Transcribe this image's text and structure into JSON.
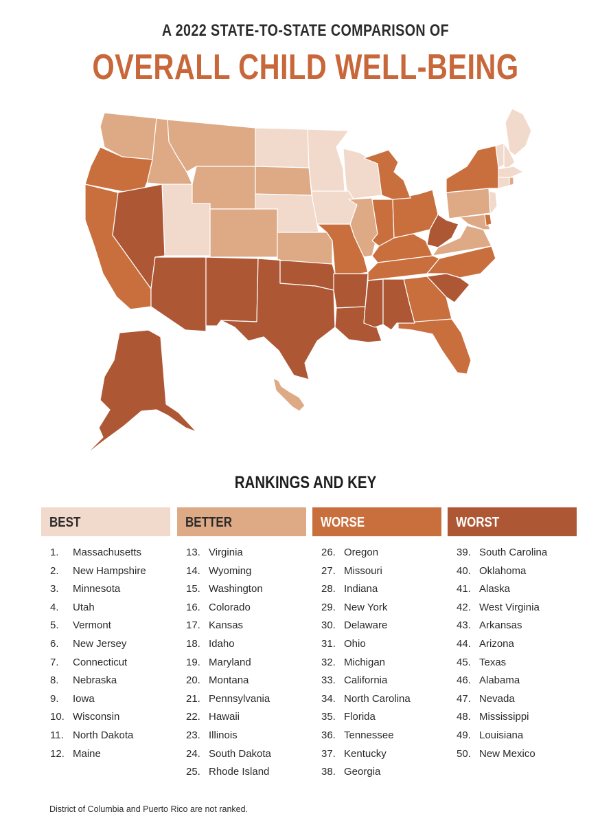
{
  "header": {
    "subtitle": "A 2022 STATE-TO-STATE COMPARISON OF",
    "title": "OVERALL CHILD WELL-BEING",
    "title_color": "#c8683a"
  },
  "key": {
    "heading": "RANKINGS AND KEY",
    "tiers": [
      {
        "label": "BEST",
        "color": "#f1d9cb",
        "text_color": "#2a2a2a"
      },
      {
        "label": "BETTER",
        "color": "#dea985",
        "text_color": "#2a2a2a"
      },
      {
        "label": "WORSE",
        "color": "#c96f3e",
        "text_color": "#ffffff"
      },
      {
        "label": "WORST",
        "color": "#ad5735",
        "text_color": "#ffffff"
      }
    ],
    "columns": [
      [
        {
          "rank": "1.",
          "state": "Massachusetts"
        },
        {
          "rank": "2.",
          "state": "New Hampshire"
        },
        {
          "rank": "3.",
          "state": "Minnesota"
        },
        {
          "rank": "4.",
          "state": "Utah"
        },
        {
          "rank": "5.",
          "state": "Vermont"
        },
        {
          "rank": "6.",
          "state": "New Jersey"
        },
        {
          "rank": "7.",
          "state": "Connecticut"
        },
        {
          "rank": "8.",
          "state": "Nebraska"
        },
        {
          "rank": "9.",
          "state": "Iowa"
        },
        {
          "rank": "10.",
          "state": "Wisconsin"
        },
        {
          "rank": "11.",
          "state": "North Dakota"
        },
        {
          "rank": "12.",
          "state": "Maine"
        }
      ],
      [
        {
          "rank": "13.",
          "state": "Virginia"
        },
        {
          "rank": "14.",
          "state": "Wyoming"
        },
        {
          "rank": "15.",
          "state": "Washington"
        },
        {
          "rank": "16.",
          "state": "Colorado"
        },
        {
          "rank": "17.",
          "state": "Kansas"
        },
        {
          "rank": "18.",
          "state": "Idaho"
        },
        {
          "rank": "19.",
          "state": "Maryland"
        },
        {
          "rank": "20.",
          "state": "Montana"
        },
        {
          "rank": "21.",
          "state": "Pennsylvania"
        },
        {
          "rank": "22.",
          "state": "Hawaii"
        },
        {
          "rank": "23.",
          "state": "Illinois"
        },
        {
          "rank": "24.",
          "state": "South Dakota"
        },
        {
          "rank": "25.",
          "state": "Rhode Island"
        }
      ],
      [
        {
          "rank": "26.",
          "state": "Oregon"
        },
        {
          "rank": "27.",
          "state": "Missouri"
        },
        {
          "rank": "28.",
          "state": "Indiana"
        },
        {
          "rank": "29.",
          "state": "New York"
        },
        {
          "rank": "30.",
          "state": "Delaware"
        },
        {
          "rank": "31.",
          "state": "Ohio"
        },
        {
          "rank": "32.",
          "state": "Michigan"
        },
        {
          "rank": "33.",
          "state": "California"
        },
        {
          "rank": "34.",
          "state": "North Carolina"
        },
        {
          "rank": "35.",
          "state": "Florida"
        },
        {
          "rank": "36.",
          "state": "Tennessee"
        },
        {
          "rank": "37.",
          "state": "Kentucky"
        },
        {
          "rank": "38.",
          "state": "Georgia"
        }
      ],
      [
        {
          "rank": "39.",
          "state": "South Carolina"
        },
        {
          "rank": "40.",
          "state": "Oklahoma"
        },
        {
          "rank": "41.",
          "state": "Alaska"
        },
        {
          "rank": "42.",
          "state": "West Virginia"
        },
        {
          "rank": "43.",
          "state": "Arkansas"
        },
        {
          "rank": "44.",
          "state": "Arizona"
        },
        {
          "rank": "45.",
          "state": "Texas"
        },
        {
          "rank": "46.",
          "state": "Alabama"
        },
        {
          "rank": "47.",
          "state": "Nevada"
        },
        {
          "rank": "48.",
          "state": "Mississippi"
        },
        {
          "rank": "49.",
          "state": "Louisiana"
        },
        {
          "rank": "50.",
          "state": "New Mexico"
        }
      ]
    ]
  },
  "footnote": "District of Columbia and Puerto Rico are not ranked."
}
